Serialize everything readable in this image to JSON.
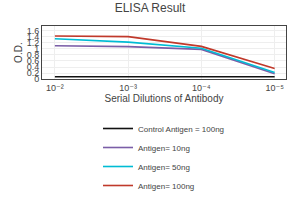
{
  "chart_data": {
    "type": "line",
    "title": "ELISA Result",
    "x_label": "Serial Dilutions of Antibody",
    "y_label": "O.D.",
    "x": [
      0.01,
      0.001,
      0.0001,
      1e-05
    ],
    "series": [
      {
        "name": "Control Antigen = 100ng",
        "color": "#111111",
        "values": [
          0.08,
          0.08,
          0.08,
          0.08
        ]
      },
      {
        "name": "Antigen= 10ng",
        "color": "#7b5ea7",
        "values": [
          1.1,
          1.07,
          0.98,
          0.18
        ]
      },
      {
        "name": "Antigen= 50ng",
        "color": "#00bcd4",
        "values": [
          1.33,
          1.22,
          1.02,
          0.22
        ]
      },
      {
        "name": "Antigen= 100ng",
        "color": "#c0392b",
        "values": [
          1.42,
          1.4,
          1.08,
          0.35
        ]
      }
    ],
    "xlim": [
      0.015,
      7e-06
    ],
    "xticks": [
      {
        "value": 0.01,
        "label": "10⁻²"
      },
      {
        "value": 0.001,
        "label": "10⁻³"
      },
      {
        "value": 0.0001,
        "label": "10⁻⁴"
      },
      {
        "value": 1e-05,
        "label": "10⁻⁵"
      }
    ],
    "ylim": [
      0,
      1.75
    ],
    "yticks": [
      0,
      0.2,
      0.4,
      0.6,
      0.8,
      1,
      1.2,
      1.4,
      1.6
    ],
    "log": "x",
    "grid": true,
    "legend": "bottom"
  }
}
